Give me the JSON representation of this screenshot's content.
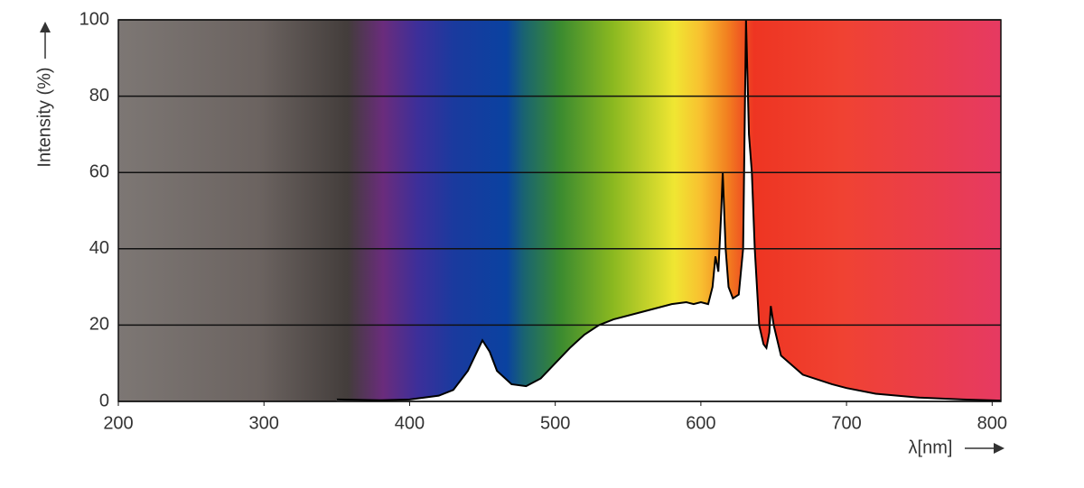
{
  "chart_data": {
    "type": "area",
    "y_label": "Intensity (%)",
    "x_label": "λ[nm]",
    "xlim": [
      200,
      806
    ],
    "xticks": [
      200,
      300,
      400,
      500,
      600,
      700,
      800
    ],
    "ylim": [
      0,
      100
    ],
    "yticks": [
      0,
      20,
      40,
      60,
      80,
      100
    ],
    "grid": true,
    "x": [
      350,
      380,
      400,
      420,
      430,
      440,
      445,
      450,
      455,
      460,
      470,
      480,
      490,
      500,
      510,
      520,
      530,
      540,
      560,
      580,
      590,
      595,
      600,
      605,
      608,
      610,
      612,
      614,
      615,
      617,
      619,
      622,
      626,
      629,
      631,
      632,
      633,
      635,
      637,
      640,
      643,
      645,
      647,
      648,
      650,
      655,
      670,
      690,
      700,
      720,
      750,
      780,
      806
    ],
    "series": [
      {
        "color": "#000000",
        "fill": "#ffffff",
        "values": [
          0.5,
          0.3,
          0.5,
          1.5,
          3,
          8,
          12,
          16,
          13,
          8,
          4.5,
          4,
          6,
          10,
          14,
          17.5,
          20,
          21.5,
          23.5,
          25.5,
          26,
          25.5,
          26,
          25.5,
          30,
          38,
          34,
          50,
          60,
          40,
          30,
          27,
          28,
          40,
          100,
          85,
          70,
          60,
          40,
          20,
          15,
          14,
          18,
          25,
          20,
          12,
          7,
          4.5,
          3.5,
          2,
          1,
          0.5,
          0.2
        ]
      }
    ]
  }
}
